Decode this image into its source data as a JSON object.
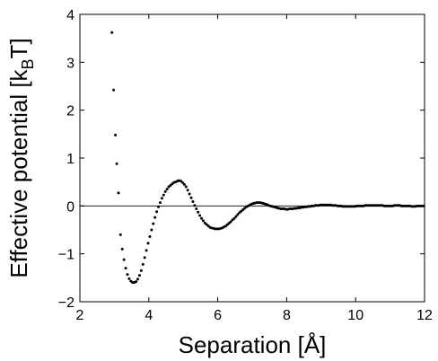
{
  "chart_data": {
    "type": "scatter",
    "xlabel": "Separation [Å]",
    "ylabel_main": "Effective potential [k",
    "ylabel_sub": "B",
    "ylabel_end": "T]",
    "xlim": [
      2,
      12
    ],
    "ylim": [
      -2,
      4
    ],
    "xticks": [
      "2",
      "4",
      "6",
      "8",
      "10",
      "12"
    ],
    "yticks": [
      "−2",
      "−1",
      "0",
      "1",
      "2",
      "3",
      "4"
    ],
    "reference_line_y": 0,
    "grid": false,
    "marker_color": "#000000",
    "series": [
      {
        "points": [
          [
            2.93,
            3.62
          ],
          [
            2.98,
            2.42
          ],
          [
            3.03,
            1.48
          ],
          [
            3.07,
            0.88
          ],
          [
            3.12,
            0.27
          ],
          [
            3.18,
            -0.6
          ],
          [
            3.23,
            -0.9
          ],
          [
            3.28,
            -1.12
          ],
          [
            3.33,
            -1.3
          ],
          [
            3.38,
            -1.43
          ],
          [
            3.43,
            -1.52
          ],
          [
            3.48,
            -1.57
          ],
          [
            3.53,
            -1.6
          ],
          [
            3.58,
            -1.6
          ],
          [
            3.63,
            -1.58
          ],
          [
            3.68,
            -1.53
          ],
          [
            3.73,
            -1.45
          ],
          [
            3.78,
            -1.35
          ],
          [
            3.83,
            -1.22
          ],
          [
            3.88,
            -1.08
          ],
          [
            3.93,
            -0.93
          ],
          [
            3.98,
            -0.78
          ],
          [
            4.03,
            -0.64
          ],
          [
            4.08,
            -0.5
          ],
          [
            4.13,
            -0.37
          ],
          [
            4.18,
            -0.24
          ],
          [
            4.23,
            -0.12
          ],
          [
            4.28,
            -0.02
          ],
          [
            4.33,
            0.07
          ],
          [
            4.38,
            0.16
          ],
          [
            4.43,
            0.23
          ],
          [
            4.48,
            0.3
          ],
          [
            4.53,
            0.35
          ],
          [
            4.58,
            0.4
          ],
          [
            4.63,
            0.43
          ],
          [
            4.68,
            0.46
          ],
          [
            4.73,
            0.49
          ],
          [
            4.78,
            0.5
          ],
          [
            4.83,
            0.52
          ],
          [
            4.88,
            0.53
          ],
          [
            4.93,
            0.52
          ],
          [
            4.98,
            0.49
          ],
          [
            5.03,
            0.45
          ],
          [
            5.08,
            0.4
          ],
          [
            5.13,
            0.33
          ],
          [
            5.18,
            0.25
          ],
          [
            5.23,
            0.17
          ],
          [
            5.28,
            0.09
          ],
          [
            5.33,
            0.01
          ],
          [
            5.38,
            -0.06
          ],
          [
            5.43,
            -0.13
          ],
          [
            5.48,
            -0.2
          ],
          [
            5.53,
            -0.26
          ],
          [
            5.58,
            -0.31
          ],
          [
            5.63,
            -0.36
          ],
          [
            5.68,
            -0.39
          ],
          [
            5.73,
            -0.42
          ],
          [
            5.78,
            -0.45
          ],
          [
            5.83,
            -0.46
          ],
          [
            5.88,
            -0.47
          ],
          [
            5.93,
            -0.48
          ],
          [
            5.98,
            -0.48
          ],
          [
            6.03,
            -0.48
          ],
          [
            6.08,
            -0.47
          ],
          [
            6.13,
            -0.46
          ],
          [
            6.18,
            -0.44
          ],
          [
            6.23,
            -0.42
          ],
          [
            6.28,
            -0.39
          ],
          [
            6.33,
            -0.36
          ],
          [
            6.38,
            -0.33
          ],
          [
            6.43,
            -0.29
          ],
          [
            6.48,
            -0.26
          ],
          [
            6.53,
            -0.22
          ],
          [
            6.58,
            -0.18
          ],
          [
            6.63,
            -0.14
          ],
          [
            6.68,
            -0.11
          ],
          [
            6.73,
            -0.08
          ],
          [
            6.78,
            -0.05
          ],
          [
            6.83,
            -0.02
          ],
          [
            6.88,
            0.0
          ],
          [
            6.93,
            0.02
          ],
          [
            6.98,
            0.04
          ],
          [
            7.03,
            0.05
          ],
          [
            7.08,
            0.06
          ],
          [
            7.13,
            0.07
          ],
          [
            7.18,
            0.07
          ],
          [
            7.23,
            0.07
          ],
          [
            7.28,
            0.06
          ],
          [
            7.33,
            0.05
          ],
          [
            7.38,
            0.04
          ],
          [
            7.43,
            0.03
          ],
          [
            7.48,
            0.01
          ],
          [
            7.53,
            0.0
          ],
          [
            7.58,
            -0.01
          ],
          [
            7.63,
            -0.02
          ],
          [
            7.68,
            -0.03
          ],
          [
            7.73,
            -0.04
          ],
          [
            7.78,
            -0.05
          ],
          [
            7.83,
            -0.06
          ],
          [
            7.88,
            -0.06
          ],
          [
            7.93,
            -0.06
          ],
          [
            7.98,
            -0.07
          ],
          [
            8.03,
            -0.07
          ],
          [
            8.08,
            -0.06
          ],
          [
            8.13,
            -0.06
          ],
          [
            8.18,
            -0.06
          ],
          [
            8.23,
            -0.05
          ],
          [
            8.28,
            -0.05
          ],
          [
            8.33,
            -0.04
          ],
          [
            8.38,
            -0.04
          ],
          [
            8.43,
            -0.03
          ],
          [
            8.48,
            -0.03
          ],
          [
            8.53,
            -0.02
          ],
          [
            8.58,
            -0.02
          ],
          [
            8.63,
            -0.01
          ],
          [
            8.68,
            -0.01
          ],
          [
            8.73,
            0.0
          ],
          [
            8.78,
            0.0
          ],
          [
            8.83,
            0.01
          ],
          [
            8.88,
            0.01
          ],
          [
            8.93,
            0.01
          ],
          [
            8.98,
            0.02
          ],
          [
            9.03,
            0.02
          ],
          [
            9.08,
            0.02
          ],
          [
            9.13,
            0.02
          ],
          [
            9.18,
            0.02
          ],
          [
            9.23,
            0.02
          ],
          [
            9.28,
            0.02
          ],
          [
            9.33,
            0.01
          ],
          [
            9.38,
            0.01
          ],
          [
            9.43,
            0.01
          ],
          [
            9.48,
            0.0
          ],
          [
            9.53,
            0.0
          ],
          [
            9.58,
            0.0
          ],
          [
            9.63,
            -0.01
          ],
          [
            9.68,
            -0.01
          ],
          [
            9.73,
            -0.01
          ],
          [
            9.78,
            -0.01
          ],
          [
            9.83,
            -0.01
          ],
          [
            9.88,
            -0.01
          ],
          [
            9.93,
            -0.01
          ],
          [
            9.98,
            -0.01
          ],
          [
            10.03,
            0.0
          ],
          [
            10.08,
            0.0
          ],
          [
            10.13,
            0.0
          ],
          [
            10.18,
            0.0
          ],
          [
            10.23,
            0.0
          ],
          [
            10.28,
            0.01
          ],
          [
            10.33,
            0.01
          ],
          [
            10.38,
            0.01
          ],
          [
            10.43,
            0.01
          ],
          [
            10.48,
            0.01
          ],
          [
            10.53,
            0.01
          ],
          [
            10.58,
            0.01
          ],
          [
            10.63,
            0.01
          ],
          [
            10.68,
            0.01
          ],
          [
            10.73,
            0.01
          ],
          [
            10.78,
            0.01
          ],
          [
            10.83,
            0.0
          ],
          [
            10.88,
            0.0
          ],
          [
            10.93,
            0.0
          ],
          [
            10.98,
            0.0
          ],
          [
            11.03,
            0.0
          ],
          [
            11.08,
            0.0
          ],
          [
            11.13,
            0.01
          ],
          [
            11.18,
            0.01
          ],
          [
            11.23,
            0.01
          ],
          [
            11.28,
            0.01
          ],
          [
            11.33,
            0.0
          ],
          [
            11.38,
            0.0
          ],
          [
            11.43,
            0.0
          ],
          [
            11.48,
            0.0
          ],
          [
            11.53,
            0.0
          ],
          [
            11.58,
            0.0
          ],
          [
            11.63,
            -0.01
          ],
          [
            11.68,
            -0.01
          ],
          [
            11.73,
            -0.01
          ],
          [
            11.78,
            0.0
          ],
          [
            11.83,
            0.0
          ],
          [
            11.88,
            0.0
          ],
          [
            11.93,
            0.0
          ],
          [
            11.98,
            0.0
          ]
        ]
      }
    ]
  }
}
